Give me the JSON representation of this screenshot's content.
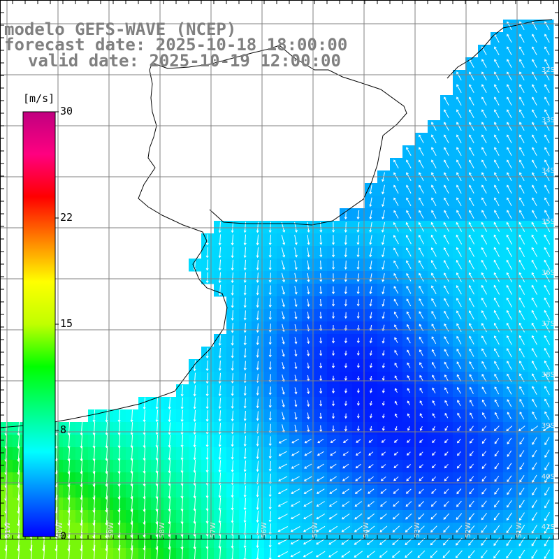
{
  "title": {
    "line1": "modelo GEFS-WAVE (NCEP)",
    "line2": "forecast date: 2025-10-18 18:00:00",
    "line3": "valid date: 2025-10-19 12:00:00"
  },
  "colorbar": {
    "unit": "[m/s]",
    "ticks": [
      "30",
      "22",
      "15",
      "8",
      "0"
    ],
    "tick_values": [
      30,
      22,
      15,
      8,
      0
    ],
    "range": [
      0,
      30
    ],
    "colors": [
      "#0000ff",
      "#0080ff",
      "#00ffff",
      "#00ff80",
      "#00ff00",
      "#c0ff00",
      "#ffff00",
      "#ff8000",
      "#ff0000",
      "#ff0080",
      "#c00080"
    ]
  },
  "lat_labels": [
    "32S",
    "33S",
    "34S",
    "35S",
    "36S",
    "37S",
    "38S",
    "39S",
    "40S",
    "41S"
  ],
  "lon_labels": [
    "61W",
    "60W",
    "59W",
    "58W",
    "57W",
    "56W",
    "55W",
    "54W",
    "53W",
    "52W",
    "51W"
  ],
  "field": {
    "description_colors": {
      "land": "#ffffff",
      "grid": "#808080",
      "coast": "#000000",
      "arrows": "#ffffff"
    }
  }
}
